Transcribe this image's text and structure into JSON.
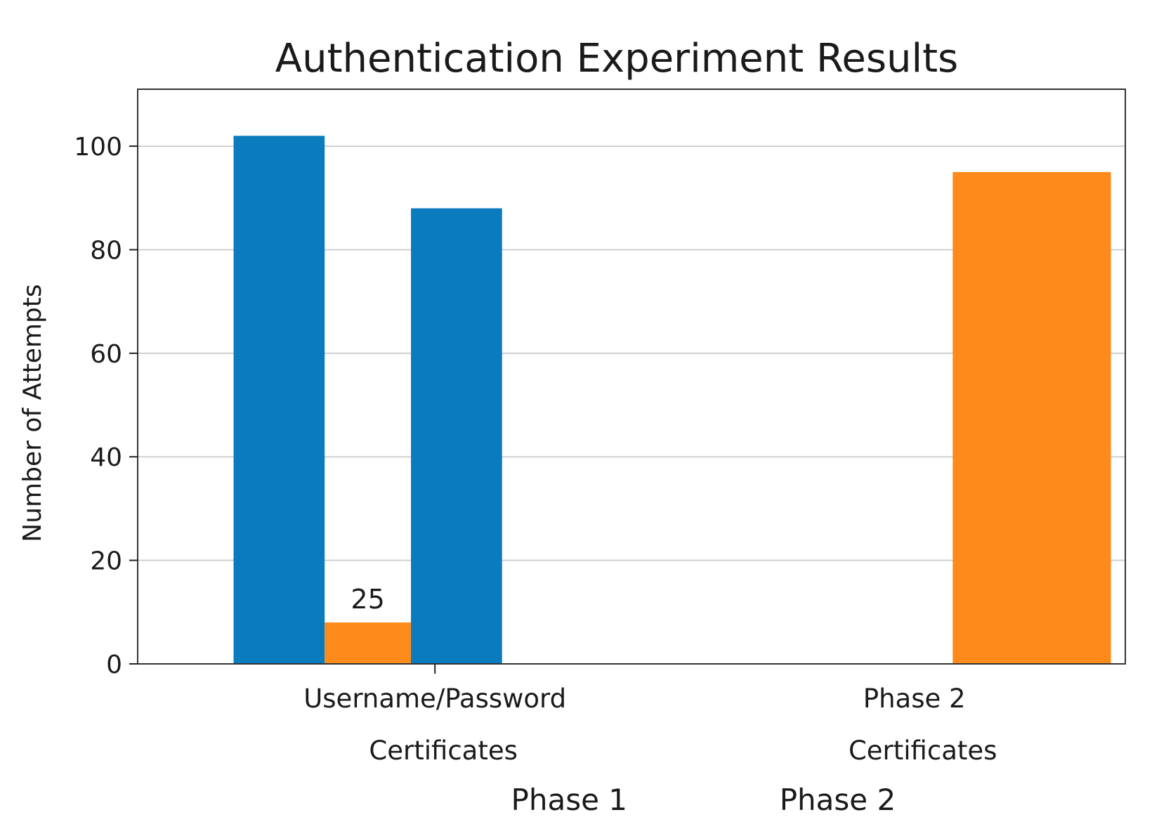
{
  "chart_data": {
    "type": "bar",
    "title": "Authentication Experiment Results",
    "ylabel": "Number of Attempts",
    "xlabel": "",
    "ylim": [
      0,
      111
    ],
    "yticks": [
      0,
      20,
      40,
      60,
      80,
      100
    ],
    "grid": "horizontal",
    "colors": {
      "blue": "#0a7bbd",
      "orange": "#fd8a1a"
    },
    "bars": [
      {
        "x": -0.42,
        "width": 0.19,
        "value": 102,
        "color": "#0a7bbd",
        "label": ""
      },
      {
        "x": -0.23,
        "width": 0.18,
        "value": 8,
        "color": "#fd8a1a",
        "label": "25"
      },
      {
        "x": -0.05,
        "width": 0.19,
        "value": 88,
        "color": "#0a7bbd",
        "label": ""
      },
      {
        "x": 1.08,
        "width": 0.33,
        "value": 95,
        "color": "#fd8a1a",
        "label": ""
      }
    ],
    "xlim": [
      -0.62,
      1.44
    ],
    "x_ticks": [
      {
        "x": 0.0,
        "label": "Username/Password"
      },
      {
        "x": 1.0,
        "label": "Phase 2"
      }
    ],
    "secondary_labels": [
      {
        "x": 0.0,
        "label": "Certificates"
      },
      {
        "x": 1.0,
        "label": "Certificates"
      }
    ],
    "group_labels": [
      {
        "x": 0.28,
        "label": "Phase 1"
      },
      {
        "x": 0.84,
        "label": "Phase 2"
      }
    ]
  }
}
